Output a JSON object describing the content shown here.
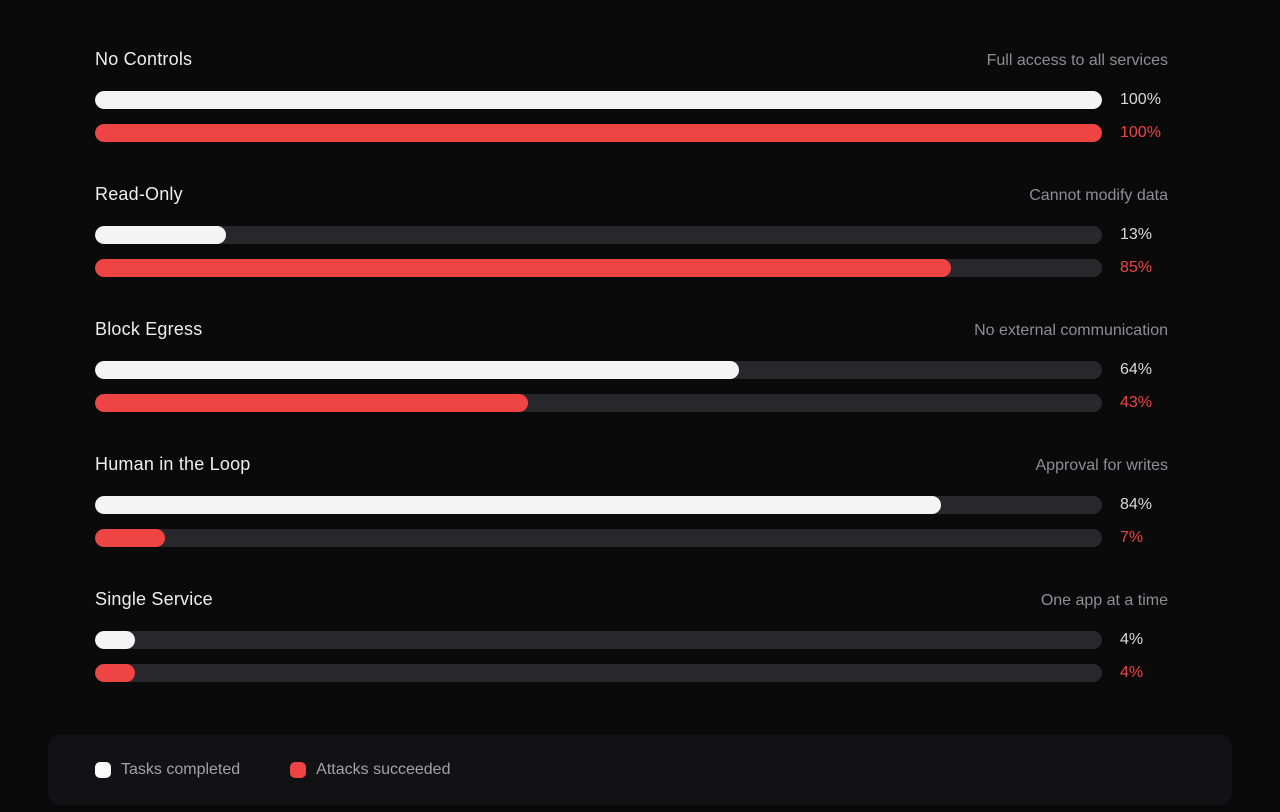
{
  "chart_data": {
    "type": "bar",
    "orientation": "horizontal",
    "categories": [
      "No Controls",
      "Read-Only",
      "Block Egress",
      "Human in the Loop",
      "Single Service"
    ],
    "category_subtitles": [
      "Full access to all services",
      "Cannot modify data",
      "No external communication",
      "Approval for writes",
      "One app at a time"
    ],
    "series": [
      {
        "name": "Tasks completed",
        "color": "#f4f4f5",
        "values": [
          100,
          13,
          64,
          84,
          4
        ]
      },
      {
        "name": "Attacks succeeded",
        "color": "#ef4444",
        "values": [
          100,
          85,
          43,
          7,
          4
        ]
      }
    ],
    "value_format": "percent",
    "xlim": [
      0,
      100
    ],
    "grid": false,
    "legend_position": "bottom"
  },
  "rows": [
    {
      "title": "No Controls",
      "subtitle": "Full access to all services",
      "tasks": {
        "value": 100,
        "label": "100%"
      },
      "attacks": {
        "value": 100,
        "label": "100%"
      }
    },
    {
      "title": "Read-Only",
      "subtitle": "Cannot modify data",
      "tasks": {
        "value": 13,
        "label": "13%"
      },
      "attacks": {
        "value": 85,
        "label": "85%"
      }
    },
    {
      "title": "Block Egress",
      "subtitle": "No external communication",
      "tasks": {
        "value": 64,
        "label": "64%"
      },
      "attacks": {
        "value": 43,
        "label": "43%"
      }
    },
    {
      "title": "Human in the Loop",
      "subtitle": "Approval for writes",
      "tasks": {
        "value": 84,
        "label": "84%"
      },
      "attacks": {
        "value": 7,
        "label": "7%"
      }
    },
    {
      "title": "Single Service",
      "subtitle": "One app at a time",
      "tasks": {
        "value": 4,
        "label": "4%"
      },
      "attacks": {
        "value": 4,
        "label": "4%"
      }
    }
  ],
  "legend": {
    "items": [
      {
        "label": "Tasks completed",
        "color": "#fafafa"
      },
      {
        "label": "Attacks succeeded",
        "color": "#ef4444"
      }
    ]
  },
  "colors": {
    "background": "#0a0a0b",
    "panel": "#121214",
    "track": "#28282c",
    "tasks_bar": "#f4f4f5",
    "attacks_bar": "#ef4444",
    "title_text": "#ededee",
    "subtitle_text": "#8e8e93",
    "legend_text": "#a1a1a6"
  }
}
